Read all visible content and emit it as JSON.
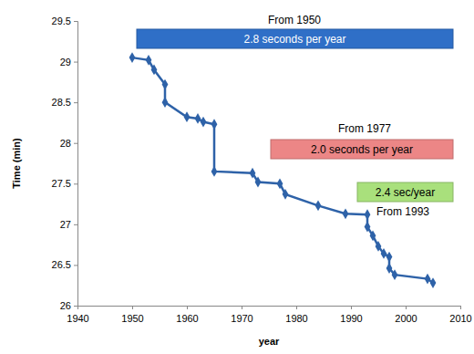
{
  "chart_data": {
    "type": "line",
    "x_label": "year",
    "y_label": "Time (min)",
    "x": [
      1950,
      1953,
      1954,
      1956,
      1956,
      1960,
      1962,
      1963,
      1965,
      1965,
      1972,
      1973,
      1977,
      1978,
      1984,
      1989,
      1993,
      1993,
      1994,
      1995,
      1996,
      1997,
      1997,
      1998,
      2004,
      2005
    ],
    "series": [
      {
        "name": "Time",
        "color": "#2e62a8",
        "marker": "diamond",
        "line_style": "solid",
        "values": [
          29.05,
          29.02,
          28.9,
          28.72,
          28.5,
          28.32,
          28.3,
          28.26,
          28.23,
          27.65,
          27.63,
          27.52,
          27.5,
          27.37,
          27.23,
          27.13,
          27.12,
          26.97,
          26.86,
          26.73,
          26.64,
          26.6,
          26.46,
          26.38,
          26.33,
          26.28
        ]
      }
    ],
    "xlim": [
      1940,
      2010
    ],
    "xticks": [
      1940,
      1950,
      1960,
      1970,
      1980,
      1990,
      2000,
      2010
    ],
    "ylim": [
      26,
      29.5
    ],
    "yticks": [
      26,
      26.5,
      27,
      27.5,
      28,
      28.5,
      29,
      29.5
    ],
    "grid": false,
    "annotations": [
      {
        "label": "From 1950",
        "text": "2.8 seconds per year",
        "color": "#2f6fc7"
      },
      {
        "label": "From 1977",
        "text": "2.0 seconds per year",
        "color": "#ec8686"
      },
      {
        "label": "From 1993",
        "text": "2.4 sec/year",
        "color": "#a9e07c"
      }
    ]
  }
}
